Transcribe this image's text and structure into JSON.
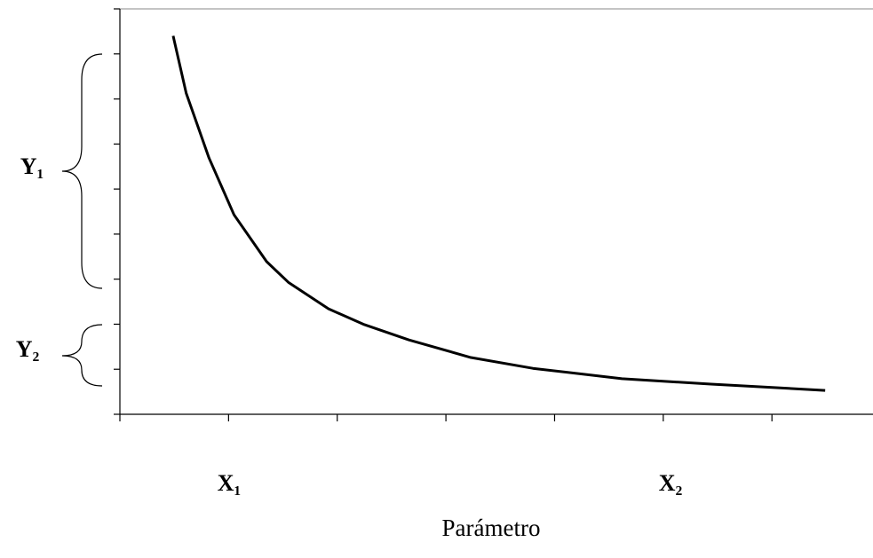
{
  "chart_data": {
    "type": "line",
    "x_label": "Parámetro",
    "annotations": [
      "X₁",
      "X₂",
      "Y₁",
      "Y₂"
    ],
    "x": [
      0.49,
      0.61,
      0.82,
      1.05,
      1.35,
      1.55,
      1.92,
      2.25,
      2.66,
      3.23,
      3.8,
      4.62,
      5.44,
      6.49
    ],
    "values": [
      8.4,
      7.13,
      5.69,
      4.43,
      3.39,
      2.93,
      2.34,
      1.99,
      1.65,
      1.26,
      1.02,
      0.79,
      0.67,
      0.53
    ],
    "color": "#000000",
    "xlim": [
      0,
      6.93
    ],
    "xticks": [
      0,
      1,
      2,
      3,
      4,
      5,
      6
    ],
    "ylim": [
      0,
      9
    ],
    "yticks": [
      0,
      1,
      2,
      3,
      4,
      5,
      6,
      7,
      8,
      9
    ]
  }
}
